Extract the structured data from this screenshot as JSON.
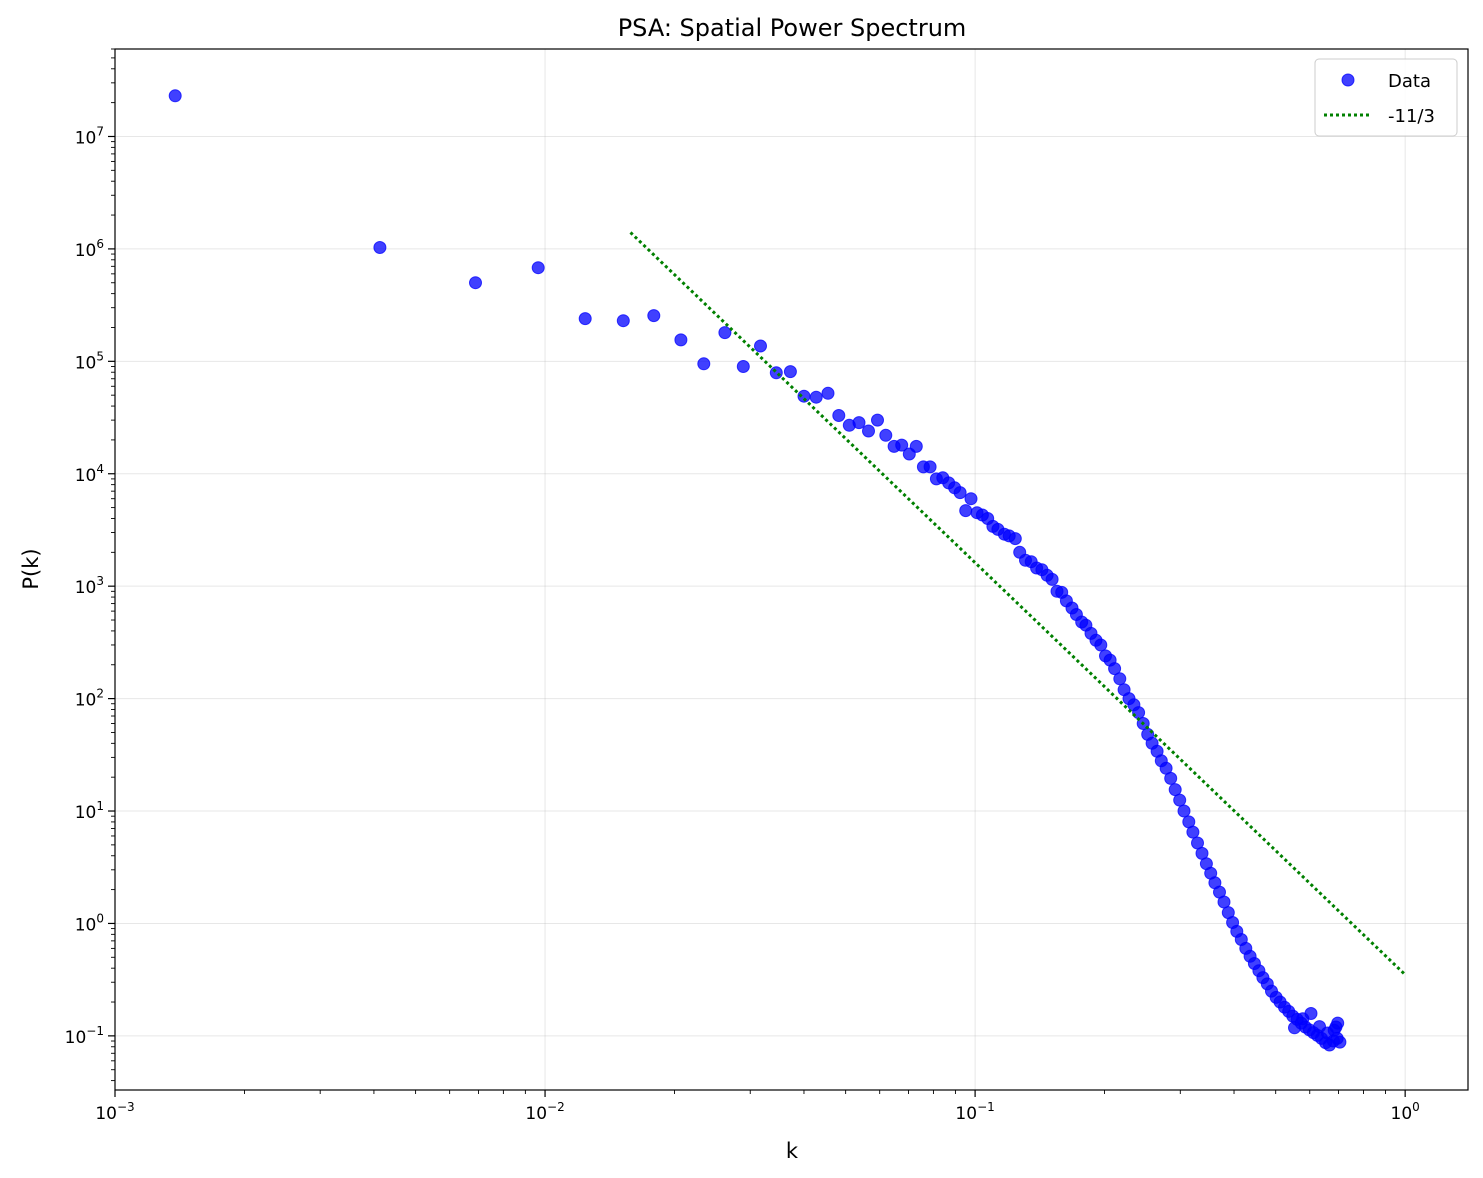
{
  "chart_data": {
    "type": "scatter",
    "title": "PSA: Spatial Power Spectrum",
    "xlabel": "k",
    "ylabel": "P(k)",
    "xscale": "log",
    "yscale": "log",
    "xlim": [
      0.001,
      1.4
    ],
    "ylim": [
      0.033,
      60000000
    ],
    "grid": true,
    "legend_position": "top-right",
    "x_ticks": [
      {
        "base": "10",
        "exp": "−3",
        "value": 0.001
      },
      {
        "base": "10",
        "exp": "−2",
        "value": 0.01
      },
      {
        "base": "10",
        "exp": "−1",
        "value": 0.1
      },
      {
        "base": "10",
        "exp": "0",
        "value": 1
      }
    ],
    "y_ticks": [
      {
        "base": "10",
        "exp": "−1",
        "value": 0.1
      },
      {
        "base": "10",
        "exp": "0",
        "value": 1
      },
      {
        "base": "10",
        "exp": "1",
        "value": 10
      },
      {
        "base": "10",
        "exp": "2",
        "value": 100
      },
      {
        "base": "10",
        "exp": "3",
        "value": 1000
      },
      {
        "base": "10",
        "exp": "4",
        "value": 10000
      },
      {
        "base": "10",
        "exp": "5",
        "value": 100000
      },
      {
        "base": "10",
        "exp": "6",
        "value": 1000000
      },
      {
        "base": "10",
        "exp": "7",
        "value": 10000000
      }
    ],
    "series": [
      {
        "name": "Data",
        "style": "markers",
        "color": "#0000ff",
        "points": [
          [
            0.00138,
            23000000
          ],
          [
            0.00413,
            1030000
          ],
          [
            0.00689,
            500000
          ],
          [
            0.00964,
            680000
          ],
          [
            0.0124,
            240000
          ],
          [
            0.0152,
            230000
          ],
          [
            0.0179,
            255000
          ],
          [
            0.0207,
            155000
          ],
          [
            0.0234,
            95000
          ],
          [
            0.0262,
            180000
          ],
          [
            0.0289,
            90000
          ],
          [
            0.0317,
            137000
          ],
          [
            0.0345,
            79000
          ],
          [
            0.0372,
            81000
          ],
          [
            0.04,
            49000
          ],
          [
            0.0427,
            48000
          ],
          [
            0.0455,
            52000
          ],
          [
            0.0482,
            33000
          ],
          [
            0.051,
            27000
          ],
          [
            0.0537,
            28500
          ],
          [
            0.0565,
            24000
          ],
          [
            0.0593,
            30000
          ],
          [
            0.062,
            22000
          ],
          [
            0.0648,
            17500
          ],
          [
            0.0675,
            18000
          ],
          [
            0.0703,
            15000
          ],
          [
            0.073,
            17500
          ],
          [
            0.0758,
            11500
          ],
          [
            0.0786,
            11500
          ],
          [
            0.0813,
            9000
          ],
          [
            0.0841,
            9200
          ],
          [
            0.0868,
            8300
          ],
          [
            0.0896,
            7500
          ],
          [
            0.0923,
            6800
          ],
          [
            0.0951,
            4700
          ],
          [
            0.0978,
            6000
          ],
          [
            0.101,
            4500
          ],
          [
            0.104,
            4300
          ],
          [
            0.107,
            4000
          ],
          [
            0.11,
            3400
          ],
          [
            0.113,
            3200
          ],
          [
            0.117,
            2900
          ],
          [
            0.12,
            2800
          ],
          [
            0.124,
            2650
          ],
          [
            0.127,
            2000
          ],
          [
            0.131,
            1700
          ],
          [
            0.135,
            1650
          ],
          [
            0.139,
            1450
          ],
          [
            0.143,
            1400
          ],
          [
            0.147,
            1250
          ],
          [
            0.151,
            1150
          ],
          [
            0.155,
            900
          ],
          [
            0.159,
            880
          ],
          [
            0.163,
            740
          ],
          [
            0.168,
            640
          ],
          [
            0.172,
            560
          ],
          [
            0.177,
            480
          ],
          [
            0.181,
            450
          ],
          [
            0.186,
            380
          ],
          [
            0.191,
            330
          ],
          [
            0.196,
            300
          ],
          [
            0.201,
            240
          ],
          [
            0.206,
            220
          ],
          [
            0.211,
            185
          ],
          [
            0.217,
            150
          ],
          [
            0.222,
            120
          ],
          [
            0.228,
            100
          ],
          [
            0.234,
            88
          ],
          [
            0.24,
            75
          ],
          [
            0.246,
            60
          ],
          [
            0.252,
            48
          ],
          [
            0.258,
            40
          ],
          [
            0.265,
            34
          ],
          [
            0.271,
            28
          ],
          [
            0.278,
            24
          ],
          [
            0.285,
            19.5
          ],
          [
            0.292,
            15.5
          ],
          [
            0.299,
            12.5
          ],
          [
            0.306,
            10
          ],
          [
            0.314,
            8
          ],
          [
            0.321,
            6.5
          ],
          [
            0.329,
            5.2
          ],
          [
            0.337,
            4.2
          ],
          [
            0.345,
            3.4
          ],
          [
            0.353,
            2.8
          ],
          [
            0.361,
            2.3
          ],
          [
            0.37,
            1.9
          ],
          [
            0.379,
            1.55
          ],
          [
            0.388,
            1.25
          ],
          [
            0.397,
            1.02
          ],
          [
            0.406,
            0.85
          ],
          [
            0.416,
            0.72
          ],
          [
            0.426,
            0.6
          ],
          [
            0.436,
            0.51
          ],
          [
            0.446,
            0.44
          ],
          [
            0.457,
            0.38
          ],
          [
            0.467,
            0.33
          ],
          [
            0.478,
            0.29
          ],
          [
            0.489,
            0.25
          ],
          [
            0.501,
            0.22
          ],
          [
            0.512,
            0.2
          ],
          [
            0.524,
            0.18
          ],
          [
            0.536,
            0.165
          ],
          [
            0.548,
            0.15
          ],
          [
            0.561,
            0.14
          ],
          [
            0.573,
            0.13
          ],
          [
            0.586,
            0.12
          ],
          [
            0.599,
            0.113
          ],
          [
            0.612,
            0.107
          ],
          [
            0.625,
            0.101
          ],
          [
            0.639,
            0.095
          ],
          [
            0.653,
            0.087
          ],
          [
            0.667,
            0.083
          ],
          [
            0.681,
            0.09
          ],
          [
            0.695,
            0.095
          ],
          [
            0.705,
            0.088
          ],
          [
            0.553,
            0.118
          ],
          [
            0.578,
            0.142
          ],
          [
            0.604,
            0.158
          ],
          [
            0.632,
            0.121
          ],
          [
            0.659,
            0.106
          ],
          [
            0.684,
            0.112
          ],
          [
            0.697,
            0.13
          ],
          [
            0.69,
            0.12
          ]
        ]
      },
      {
        "name": "-11/3",
        "style": "dotted-line",
        "color": "#008000",
        "points": [
          [
            0.0158,
            1400000
          ],
          [
            1.0,
            0.35
          ]
        ]
      }
    ]
  }
}
